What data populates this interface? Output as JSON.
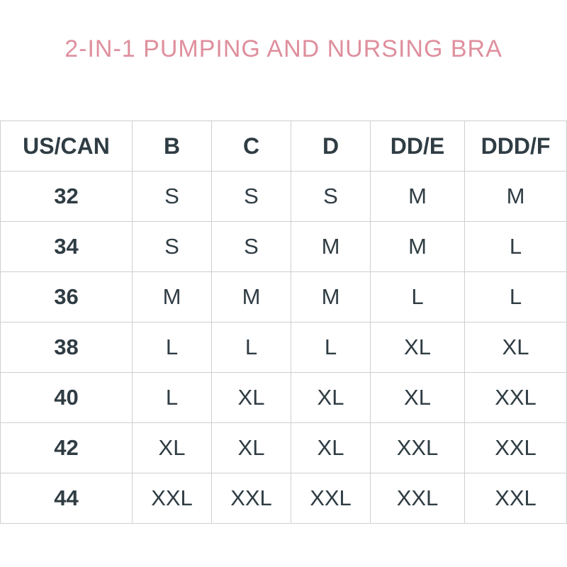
{
  "title": "2-IN-1 PUMPING AND NURSING BRA",
  "table": {
    "header": [
      "US/CAN",
      "B",
      "C",
      "D",
      "DD/E",
      "DDD/F"
    ],
    "rows": [
      [
        "32",
        "S",
        "S",
        "S",
        "M",
        "M"
      ],
      [
        "34",
        "S",
        "S",
        "M",
        "M",
        "L"
      ],
      [
        "36",
        "M",
        "M",
        "M",
        "L",
        "L"
      ],
      [
        "38",
        "L",
        "L",
        "L",
        "XL",
        "XL"
      ],
      [
        "40",
        "L",
        "XL",
        "XL",
        "XL",
        "XXL"
      ],
      [
        "42",
        "XL",
        "XL",
        "XL",
        "XXL",
        "XXL"
      ],
      [
        "44",
        "XXL",
        "XXL",
        "XXL",
        "XXL",
        "XXL"
      ]
    ]
  }
}
